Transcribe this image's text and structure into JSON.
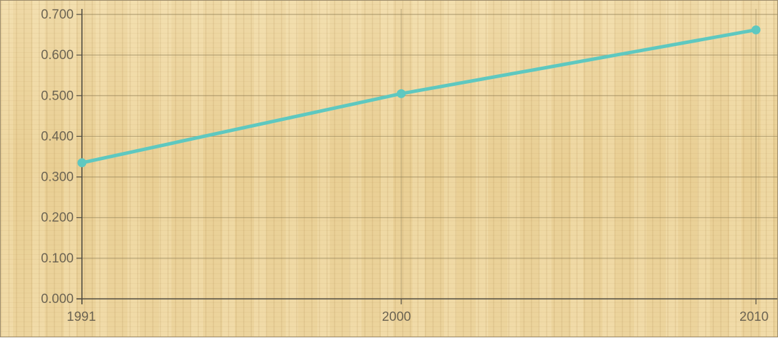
{
  "chart_data": {
    "type": "line",
    "title": "",
    "xlabel": "",
    "ylabel": "",
    "x": [
      1991,
      2000,
      2010
    ],
    "series": [
      {
        "values": [
          0.335,
          0.505,
          0.662
        ],
        "color": "#5ec8c0"
      }
    ],
    "ylim": [
      0,
      0.7
    ],
    "y_ticks": [
      "0.000",
      "0.100",
      "0.200",
      "0.300",
      "0.400",
      "0.500",
      "0.600",
      "0.700"
    ],
    "x_ticks": [
      "1991",
      "2000",
      "2010"
    ],
    "grid": true,
    "legend": "none",
    "colors": {
      "line": "#5ec8c0",
      "grid": "#8a7a52",
      "axis": "#4e4a40",
      "label": "#6b6352"
    }
  }
}
